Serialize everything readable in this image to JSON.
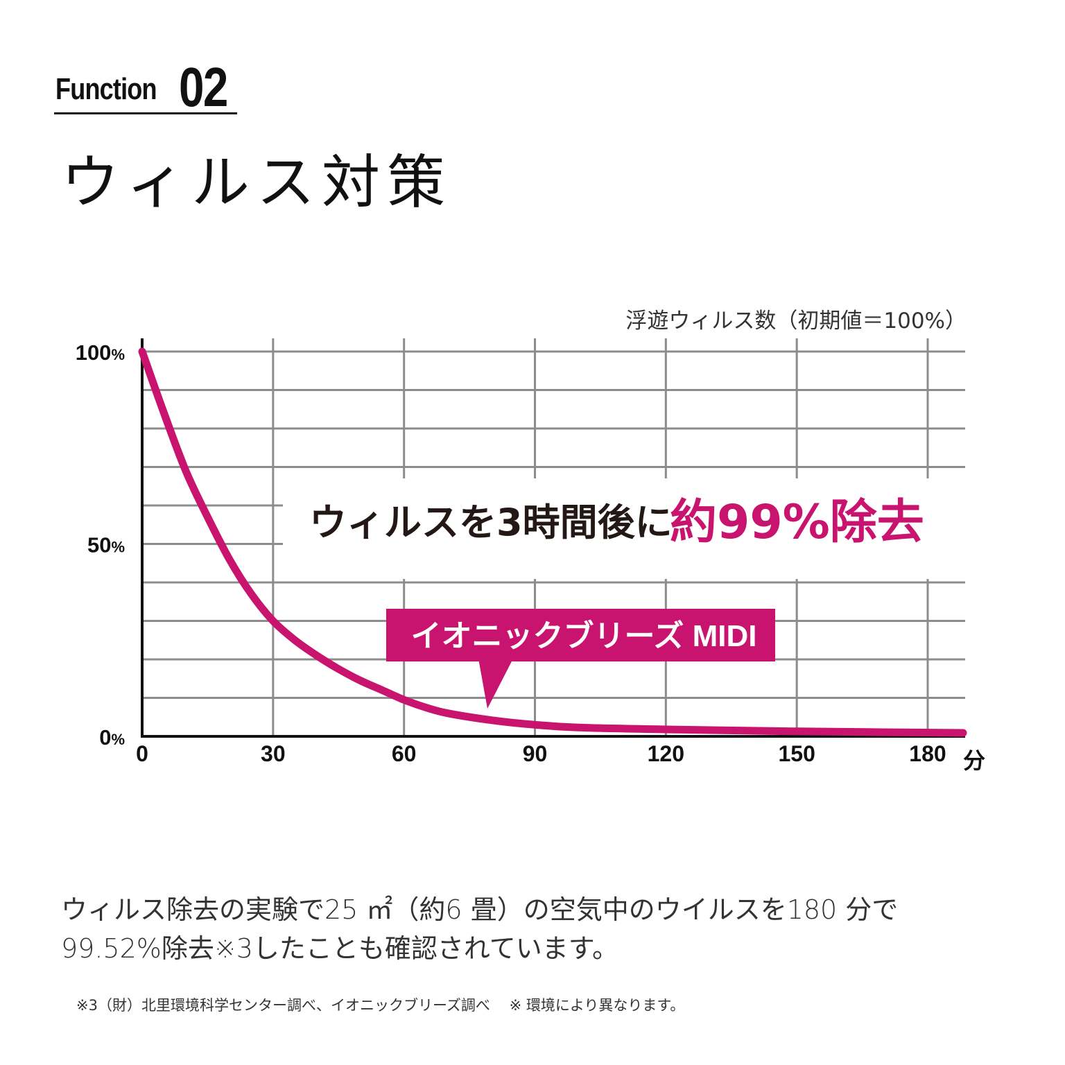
{
  "header": {
    "function_word": "Function",
    "function_number": "02",
    "title": "ウィルス対策"
  },
  "chart_data": {
    "type": "line",
    "ylabel": "浮遊ウィルス数（初期値＝100%）",
    "xunit": "分",
    "x_ticks": [
      "0",
      "30",
      "60",
      "90",
      "120",
      "150",
      "180"
    ],
    "y_ticks": [
      {
        "value": 100,
        "num": "100",
        "pct": "%"
      },
      {
        "value": 50,
        "num": "50",
        "pct": "%"
      },
      {
        "value": 0,
        "num": "0",
        "pct": "%"
      }
    ],
    "xlim": [
      0,
      180
    ],
    "ylim": [
      0,
      100
    ],
    "grid": true,
    "series": [
      {
        "name": "イオニックブリーズ MIDI",
        "color": "#c8136f",
        "points": [
          [
            0,
            100
          ],
          [
            5,
            84
          ],
          [
            10,
            69
          ],
          [
            15,
            57
          ],
          [
            20,
            46
          ],
          [
            25,
            37
          ],
          [
            30,
            30
          ],
          [
            35,
            25
          ],
          [
            40,
            21
          ],
          [
            45,
            17.5
          ],
          [
            50,
            14.5
          ],
          [
            55,
            12
          ],
          [
            60,
            9.5
          ],
          [
            65,
            7.5
          ],
          [
            70,
            6
          ],
          [
            80,
            4.2
          ],
          [
            90,
            3
          ],
          [
            100,
            2.3
          ],
          [
            120,
            1.8
          ],
          [
            150,
            1.3
          ],
          [
            180,
            0.9
          ]
        ]
      }
    ],
    "headline_black": "ウィルスを3時間後に",
    "headline_pink": "約99%除去",
    "callout_label": "イオニックブリーズ MIDI"
  },
  "body_text": {
    "line1": "ウィルス除去の実験で25 ㎡（約6 畳）の空気中のウイルスを180 分で",
    "line2": "99.52%除去※3したことも確認されています。"
  },
  "footnote": "※3（財）北里環境科学センター調べ、イオニックブリーズ調べ　 ※ 環境により異なります。",
  "colors": {
    "accent": "#c8136f",
    "grid": "#8c8c8c",
    "axis": "#111111"
  }
}
